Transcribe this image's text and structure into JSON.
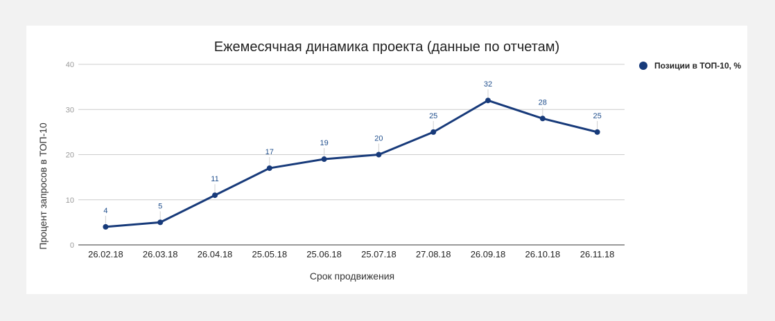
{
  "chart_data": {
    "type": "line",
    "title": "Ежемесячная динамика проекта (данные по отчетам)",
    "xlabel": "Срок продвижения",
    "ylabel": "Процент запросов в ТОП-10",
    "categories": [
      "26.02.18",
      "26.03.18",
      "26.04.18",
      "25.05.18",
      "25.06.18",
      "25.07.18",
      "27.08.18",
      "26.09.18",
      "26.10.18",
      "26.11.18"
    ],
    "series": [
      {
        "name": "Позиции в ТОП-10, %",
        "values": [
          4,
          5,
          11,
          17,
          19,
          20,
          25,
          32,
          28,
          25
        ]
      }
    ],
    "ylim": [
      0,
      40
    ],
    "yticks": [
      0,
      10,
      20,
      30,
      40
    ],
    "grid": true,
    "legend": "right",
    "colors": {
      "series": "#173a7a",
      "grid": "#cccccc",
      "axis": "#333333",
      "data_label": "#1f4e8c"
    }
  }
}
